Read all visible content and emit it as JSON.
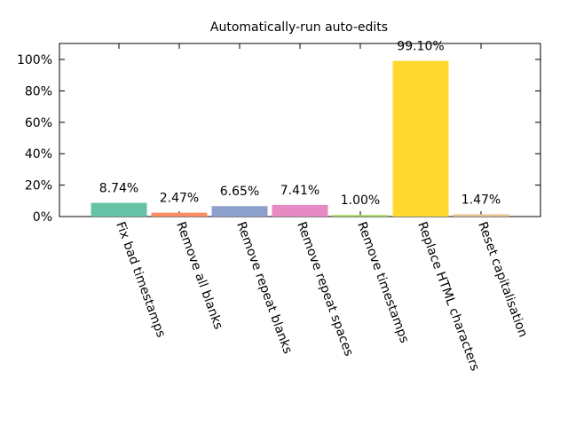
{
  "chart_data": {
    "type": "bar",
    "title": "Automatically-run auto-edits",
    "xlabel": "",
    "ylabel": "",
    "ylim": [
      0,
      100
    ],
    "yticks": [
      "0%",
      "20%",
      "40%",
      "60%",
      "80%",
      "100%"
    ],
    "grid": false,
    "categories": [
      "Fix bad timestamps",
      "Remove all blanks",
      "Remove repeat blanks",
      "Remove repeat spaces",
      "Remove timestamps",
      "Replace HTML characters",
      "Reset capitalisation"
    ],
    "values": [
      8.74,
      2.47,
      6.65,
      7.41,
      1.0,
      99.1,
      1.47
    ],
    "data_labels": [
      "8.74%",
      "2.47%",
      "6.65%",
      "7.41%",
      "1.00%",
      "99.10%",
      "1.47%"
    ],
    "colors": [
      "#66c2a5",
      "#fc8d62",
      "#8da0cb",
      "#e78ac3",
      "#a6d854",
      "#ffd92f",
      "#e5c494"
    ]
  }
}
